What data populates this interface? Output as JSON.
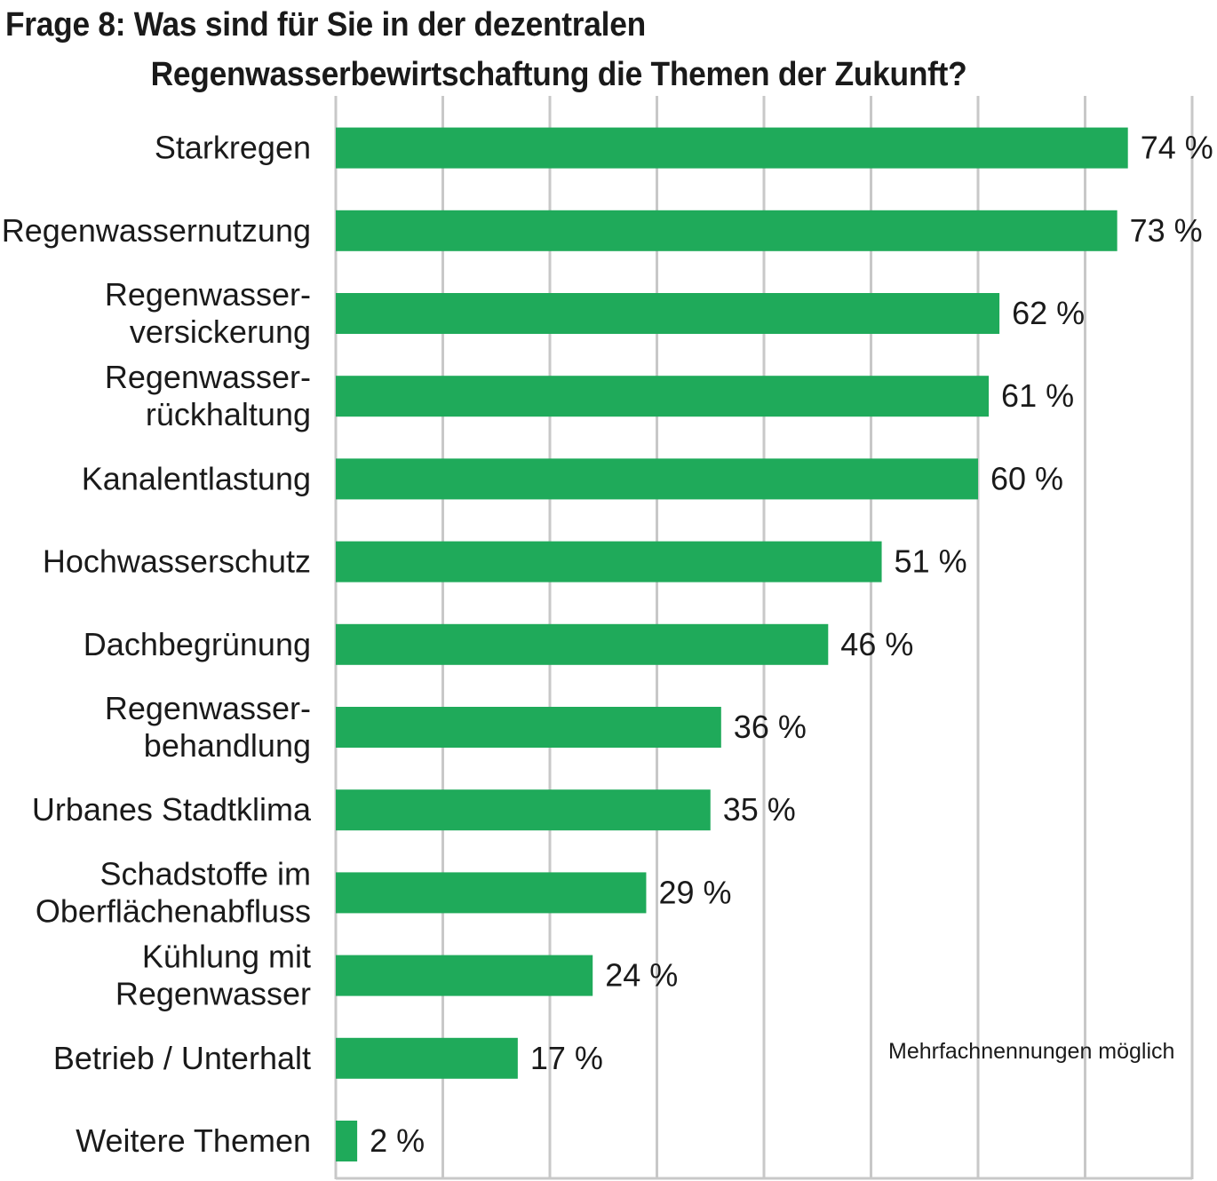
{
  "title": {
    "line1": "Frage 8: Was sind für Sie in der dezentralen",
    "line2": "Regenwasserbewirtschaftung die Themen der Zukunft?"
  },
  "note": "Mehrfachnennungen möglich",
  "colors": {
    "bar": "#1faa5a",
    "grid": "#c8c8c8",
    "text": "#1a1a1a"
  },
  "chart_data": {
    "type": "bar",
    "orientation": "horizontal",
    "categories": [
      [
        "Starkregen"
      ],
      [
        "Regenwassernutzung"
      ],
      [
        "Regenwasser-",
        "versickerung"
      ],
      [
        "Regenwasser-",
        "rückhaltung"
      ],
      [
        "Kanalentlastung"
      ],
      [
        "Hochwasserschutz"
      ],
      [
        "Dachbegrünung"
      ],
      [
        "Regenwasser-",
        "behandlung"
      ],
      [
        "Urbanes Stadtklima"
      ],
      [
        "Schadstoffe im",
        "Oberflächenabfluss"
      ],
      [
        "Kühlung mit",
        "Regenwasser"
      ],
      [
        "Betrieb / Unterhalt"
      ],
      [
        "Weitere Themen"
      ]
    ],
    "values": [
      74,
      73,
      62,
      61,
      60,
      51,
      46,
      36,
      35,
      29,
      24,
      17,
      2
    ],
    "value_labels": [
      "74 %",
      "73 %",
      "62 %",
      "61 %",
      "60 %",
      "51 %",
      "46 %",
      "36 %",
      "35 %",
      "29 %",
      "24 %",
      "17 %",
      "2 %"
    ],
    "xlim": [
      0,
      80
    ],
    "grid": true,
    "gridline_step": 10
  }
}
